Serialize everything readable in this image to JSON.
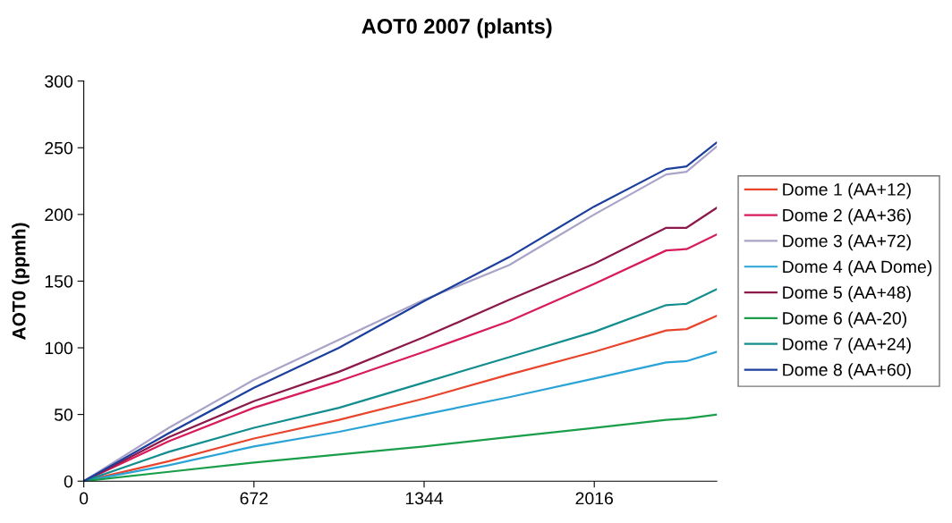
{
  "chart_data": {
    "type": "line",
    "title": "AOT0 2007 (plants)",
    "ylabel": "AOT0 (ppmh)",
    "x": [
      0,
      336,
      672,
      1008,
      1344,
      1680,
      2016,
      2300,
      2380,
      2500
    ],
    "series": [
      {
        "name": "Dome 1 (AA+12)",
        "color": "#e8452c",
        "values": [
          0,
          15,
          32,
          46,
          62,
          80,
          97,
          113,
          114,
          124
        ]
      },
      {
        "name": "Dome 2 (AA+36)",
        "color": "#d81b5a",
        "values": [
          0,
          30,
          55,
          75,
          97,
          120,
          148,
          173,
          174,
          185
        ]
      },
      {
        "name": "Dome 3 (AA+72)",
        "color": "#a9a3c8",
        "values": [
          0,
          40,
          76,
          106,
          136,
          162,
          200,
          230,
          232,
          251
        ]
      },
      {
        "name": "Dome 4 (AA Dome)",
        "color": "#2aa3d6",
        "values": [
          0,
          12,
          26,
          37,
          50,
          63,
          77,
          89,
          90,
          97
        ]
      },
      {
        "name": "Dome 5 (AA+48)",
        "color": "#8b1a4a",
        "values": [
          0,
          33,
          60,
          82,
          108,
          136,
          163,
          190,
          190,
          205
        ]
      },
      {
        "name": "Dome 6 (AA-20)",
        "color": "#1a9e4a",
        "values": [
          0,
          7,
          14,
          20,
          26,
          33,
          40,
          46,
          47,
          50
        ]
      },
      {
        "name": "Dome 7 (AA+24)",
        "color": "#138d8d",
        "values": [
          0,
          22,
          40,
          55,
          74,
          93,
          112,
          132,
          133,
          144
        ]
      },
      {
        "name": "Dome 8 (AA+60)",
        "color": "#1c3f9e",
        "values": [
          0,
          36,
          70,
          100,
          135,
          168,
          206,
          234,
          236,
          254
        ]
      }
    ],
    "xlim": [
      0,
      2500
    ],
    "xticks": [
      0,
      672,
      1344,
      2016
    ],
    "ylim": [
      0,
      300
    ],
    "yticks": [
      0,
      50,
      100,
      150,
      200,
      250,
      300
    ],
    "grid": false,
    "legend": "right",
    "marker": "none",
    "line_style": "solid"
  }
}
